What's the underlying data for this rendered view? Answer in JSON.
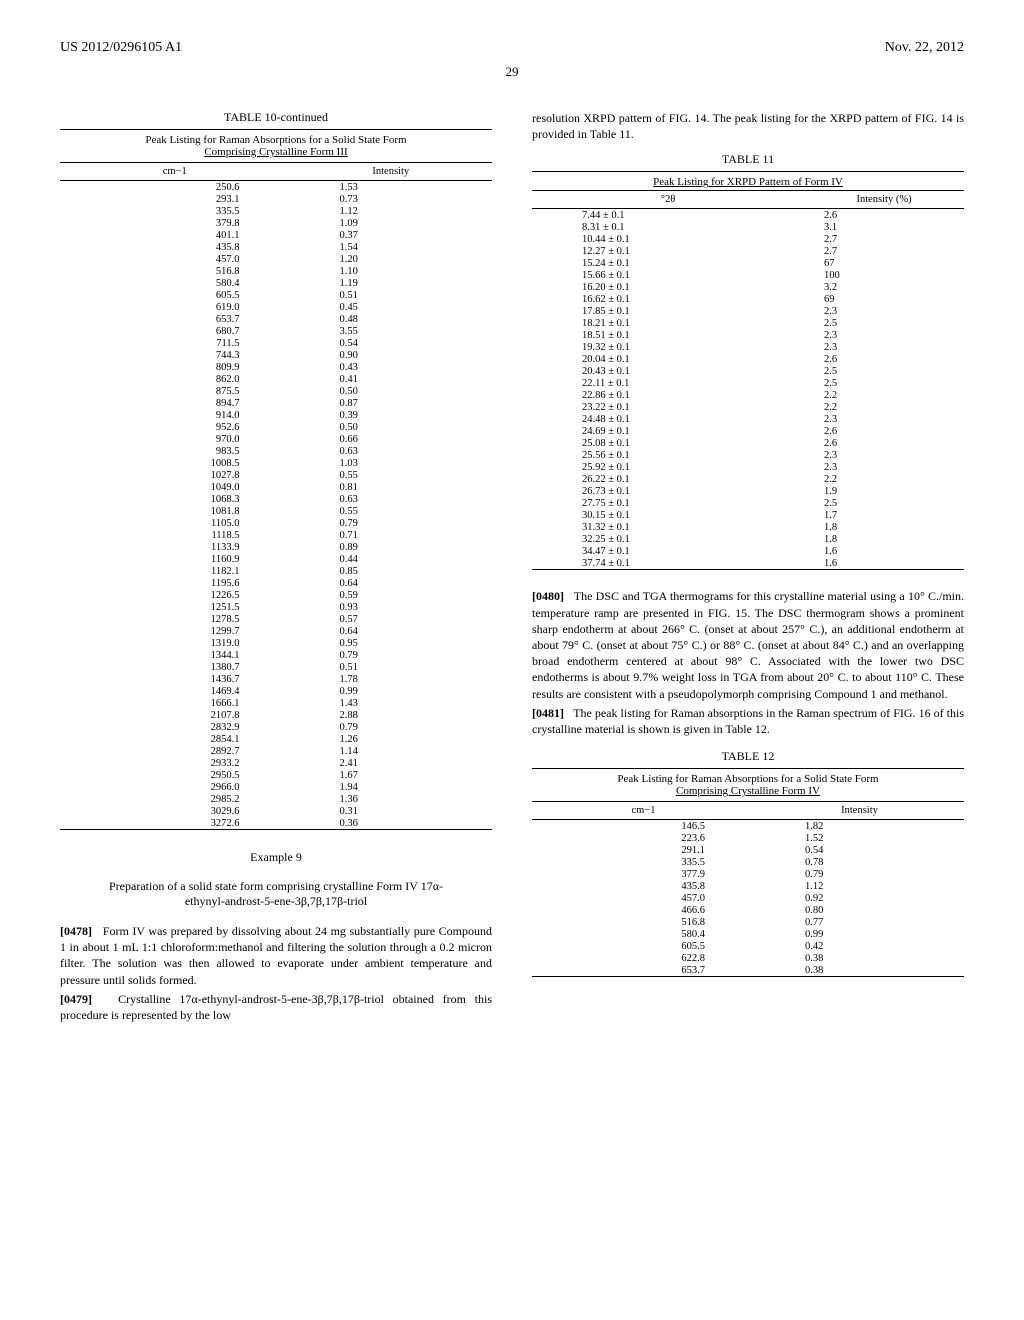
{
  "header": {
    "docNumber": "US 2012/0296105 A1",
    "pubDate": "Nov. 22, 2012"
  },
  "pageNumber": "29",
  "table10": {
    "title": "TABLE 10-continued",
    "caption1": "Peak Listing for Raman Absorptions for a Solid State Form",
    "caption2": "Comprising Crystalline Form III",
    "col1": "cm−1",
    "col2": "Intensity",
    "rows": [
      [
        "250.6",
        "1.53"
      ],
      [
        "293.1",
        "0.73"
      ],
      [
        "335.5",
        "1.12"
      ],
      [
        "379.8",
        "1.09"
      ],
      [
        "401.1",
        "0.37"
      ],
      [
        "435.8",
        "1.54"
      ],
      [
        "457.0",
        "1.20"
      ],
      [
        "516.8",
        "1.10"
      ],
      [
        "580.4",
        "1.19"
      ],
      [
        "605.5",
        "0.51"
      ],
      [
        "619.0",
        "0.45"
      ],
      [
        "653.7",
        "0.48"
      ],
      [
        "680.7",
        "3.55"
      ],
      [
        "711.5",
        "0.54"
      ],
      [
        "744.3",
        "0.90"
      ],
      [
        "809.9",
        "0.43"
      ],
      [
        "862.0",
        "0.41"
      ],
      [
        "875.5",
        "0.50"
      ],
      [
        "894.7",
        "0.87"
      ],
      [
        "914.0",
        "0.39"
      ],
      [
        "952.6",
        "0.50"
      ],
      [
        "970.0",
        "0.66"
      ],
      [
        "983.5",
        "0.63"
      ],
      [
        "1008.5",
        "1.03"
      ],
      [
        "1027.8",
        "0.55"
      ],
      [
        "1049.0",
        "0.81"
      ],
      [
        "1068.3",
        "0.63"
      ],
      [
        "1081.8",
        "0.55"
      ],
      [
        "1105.0",
        "0.79"
      ],
      [
        "1118.5",
        "0.71"
      ],
      [
        "1133.9",
        "0.89"
      ],
      [
        "1160.9",
        "0.44"
      ],
      [
        "1182.1",
        "0.85"
      ],
      [
        "1195.6",
        "0.64"
      ],
      [
        "1226.5",
        "0.59"
      ],
      [
        "1251.5",
        "0.93"
      ],
      [
        "1278.5",
        "0.57"
      ],
      [
        "1299.7",
        "0.64"
      ],
      [
        "1319.0",
        "0.95"
      ],
      [
        "1344.1",
        "0.79"
      ],
      [
        "1380.7",
        "0.51"
      ],
      [
        "1436.7",
        "1.78"
      ],
      [
        "1469.4",
        "0.99"
      ],
      [
        "1666.1",
        "1.43"
      ],
      [
        "2107.8",
        "2.88"
      ],
      [
        "2832.9",
        "0.79"
      ],
      [
        "2854.1",
        "1.26"
      ],
      [
        "2892.7",
        "1.14"
      ],
      [
        "2933.2",
        "2.41"
      ],
      [
        "2950.5",
        "1.67"
      ],
      [
        "2966.0",
        "1.94"
      ],
      [
        "2985.2",
        "1.36"
      ],
      [
        "3029.6",
        "0.31"
      ],
      [
        "3272.6",
        "0.36"
      ]
    ]
  },
  "example9": {
    "heading": "Example 9",
    "subtitle": "Preparation of a solid state form comprising crystalline Form IV 17α-ethynyl-androst-5-ene-3β,7β,17β-triol",
    "para1num": "[0478]",
    "para1": "Form IV was prepared by dissolving about 24 mg substantially pure Compound 1 in about 1 mL 1:1 chloroform:methanol and filtering the solution through a 0.2 micron filter. The solution was then allowed to evaporate under ambient temperature and pressure until solids formed.",
    "para2num": "[0479]",
    "para2": "Crystalline 17α-ethynyl-androst-5-ene-3β,7β,17β-triol obtained from this procedure is represented by the low"
  },
  "col2top": "resolution XRPD pattern of FIG. 14. The peak listing for the XRPD pattern of FIG. 14 is provided in Table 11.",
  "table11": {
    "title": "TABLE 11",
    "caption": "Peak Listing for XRPD Pattern of Form IV",
    "col1": "°2θ",
    "col2": "Intensity (%)",
    "rows": [
      [
        "7.44 ± 0.1",
        "2.6"
      ],
      [
        "8.31 ± 0.1",
        "3.1"
      ],
      [
        "10.44 ± 0.1",
        "2.7"
      ],
      [
        "12.27 ± 0.1",
        "2.7"
      ],
      [
        "15.24 ± 0.1",
        "67"
      ],
      [
        "15.66 ± 0.1",
        "100"
      ],
      [
        "16.20 ± 0.1",
        "3.2"
      ],
      [
        "16.62 ± 0.1",
        "69"
      ],
      [
        "17.85 ± 0.1",
        "2.3"
      ],
      [
        "18.21 ± 0.1",
        "2.5"
      ],
      [
        "18.51 ± 0.1",
        "2.3"
      ],
      [
        "19.32 ± 0.1",
        "2.3"
      ],
      [
        "20.04 ± 0.1",
        "2.6"
      ],
      [
        "20.43 ± 0.1",
        "2.5"
      ],
      [
        "22.11 ± 0.1",
        "2.5"
      ],
      [
        "22.86 ± 0.1",
        "2.2"
      ],
      [
        "23.22 ± 0.1",
        "2.2"
      ],
      [
        "24.48 ± 0.1",
        "2.3"
      ],
      [
        "24.69 ± 0.1",
        "2.6"
      ],
      [
        "25.08 ± 0.1",
        "2.6"
      ],
      [
        "25.56 ± 0.1",
        "2.3"
      ],
      [
        "25.92 ± 0.1",
        "2.3"
      ],
      [
        "26.22 ± 0.1",
        "2.2"
      ],
      [
        "26.73 ± 0.1",
        "1.9"
      ],
      [
        "27.75 ± 0.1",
        "2.5"
      ],
      [
        "30.15 ± 0.1",
        "1.7"
      ],
      [
        "31.32 ± 0.1",
        "1.8"
      ],
      [
        "32.25 ± 0.1",
        "1.8"
      ],
      [
        "34.47 ± 0.1",
        "1.6"
      ],
      [
        "37.74 ± 0.1",
        "1.6"
      ]
    ]
  },
  "para480num": "[0480]",
  "para480": "The DSC and TGA thermograms for this crystalline material using a 10° C./min. temperature ramp are presented in FIG. 15. The DSC thermogram shows a prominent sharp endotherm at about 266° C. (onset at about 257° C.), an additional endotherm at about 79° C. (onset at about 75° C.) or 88° C. (onset at about 84° C.) and an overlapping broad endotherm centered at about 98° C. Associated with the lower two DSC endotherms is about 9.7% weight loss in TGA from about 20° C. to about 110° C. These results are consistent with a pseudopolymorph comprising Compound 1 and methanol.",
  "para481num": "[0481]",
  "para481": "The peak listing for Raman absorptions in the Raman spectrum of FIG. 16 of this crystalline material is shown is given in Table 12.",
  "table12": {
    "title": "TABLE 12",
    "caption1": "Peak Listing for Raman Absorptions for a Solid State Form",
    "caption2": "Comprising Crystalline Form IV",
    "col1": "cm−1",
    "col2": "Intensity",
    "rows": [
      [
        "146.5",
        "1.82"
      ],
      [
        "223.6",
        "1.52"
      ],
      [
        "291.1",
        "0.54"
      ],
      [
        "335.5",
        "0.78"
      ],
      [
        "377.9",
        "0.79"
      ],
      [
        "435.8",
        "1.12"
      ],
      [
        "457.0",
        "0.92"
      ],
      [
        "466.6",
        "0.80"
      ],
      [
        "516.8",
        "0.77"
      ],
      [
        "580.4",
        "0.99"
      ],
      [
        "605.5",
        "0.42"
      ],
      [
        "622.8",
        "0.38"
      ],
      [
        "653.7",
        "0.38"
      ]
    ]
  }
}
